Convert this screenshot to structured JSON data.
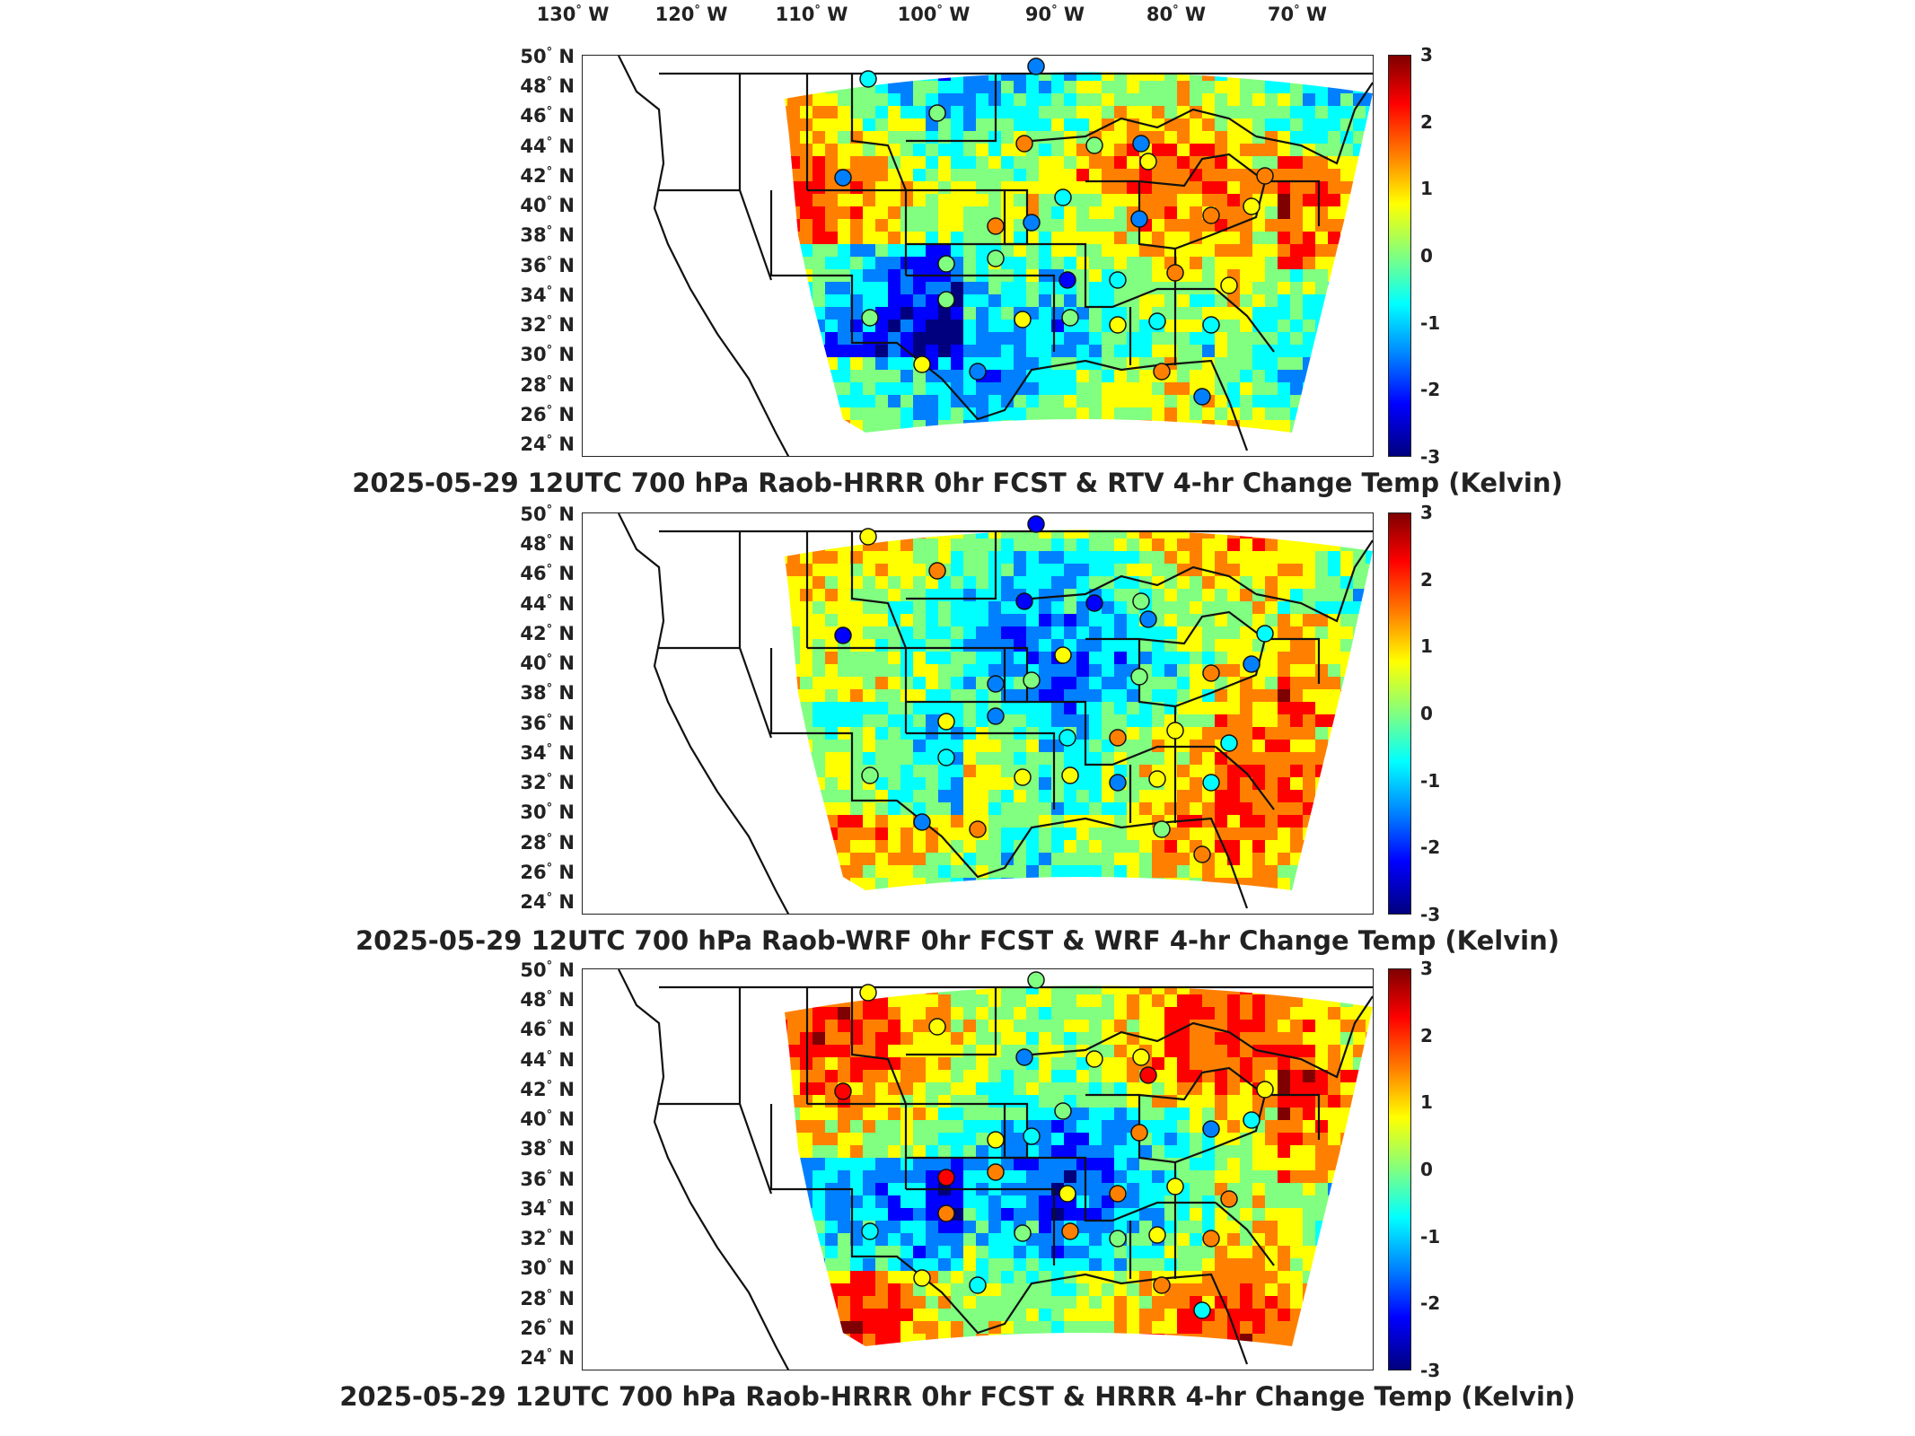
{
  "longitude_ticks": [
    "130",
    "120",
    "110",
    "100",
    "90",
    "80",
    "70"
  ],
  "longitude_suffix": "W",
  "latitude_ticks": [
    "50",
    "48",
    "46",
    "44",
    "42",
    "40",
    "38",
    "36",
    "34",
    "32",
    "30",
    "28",
    "26",
    "24"
  ],
  "latitude_suffix": "N",
  "colorbar_ticks": [
    "3",
    "2",
    "1",
    "0",
    "-1",
    "-2",
    "-3"
  ],
  "colormap": [
    "#7f0000",
    "#ff0000",
    "#ff8000",
    "#ffff00",
    "#80ff80",
    "#00ffff",
    "#0080ff",
    "#0000ff",
    "#00007f"
  ],
  "panels": [
    {
      "title": "2025-05-29 12UTC 700 hPa Raob-HRRR 0hr FCST & RTV 4-hr Change Temp (Kelvin)"
    },
    {
      "title": "2025-05-29 12UTC 700 hPa Raob-WRF 0hr FCST & WRF 4-hr Change Temp (Kelvin)"
    },
    {
      "title": "2025-05-29 12UTC 700 hPa Raob-HRRR 0hr FCST & HRRR 4-hr Change Temp (Kelvin)"
    }
  ]
}
